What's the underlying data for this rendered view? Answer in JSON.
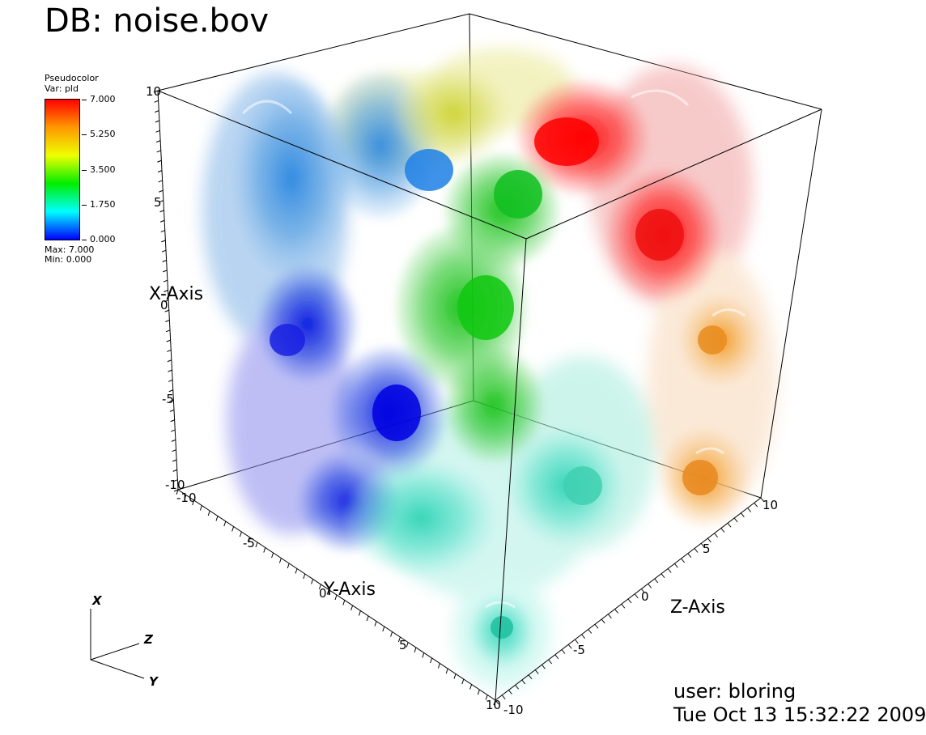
{
  "title": "DB: noise.bov",
  "legend": {
    "plot_type": "Pseudocolor",
    "variable": "Var: pld",
    "ticks": [
      "7.000",
      "5.250",
      "3.500",
      "1.750",
      "0.000"
    ],
    "max_text": "Max:  7.000",
    "min_text": "Min:  0.000",
    "gradient_colors": [
      "#ff0000",
      "#ff9900",
      "#eeff00",
      "#00ee00",
      "#00ffff",
      "#0000ff"
    ]
  },
  "axes": {
    "x_label": "X-Axis",
    "y_label": "Y-Axis",
    "z_label": "Z-Axis",
    "x_ticks": [
      "10",
      "5",
      "0",
      "-5",
      "-10"
    ],
    "y_ticks": [
      "-10",
      "-5",
      "0",
      "5",
      "10"
    ],
    "z_ticks": [
      "10",
      "5",
      "0",
      "-5",
      "-10"
    ]
  },
  "triad": {
    "x": "X",
    "y": "Y",
    "z": "Z"
  },
  "footer": {
    "user": "user: bloring",
    "date": "Tue Oct 13 15:32:22 2009"
  }
}
